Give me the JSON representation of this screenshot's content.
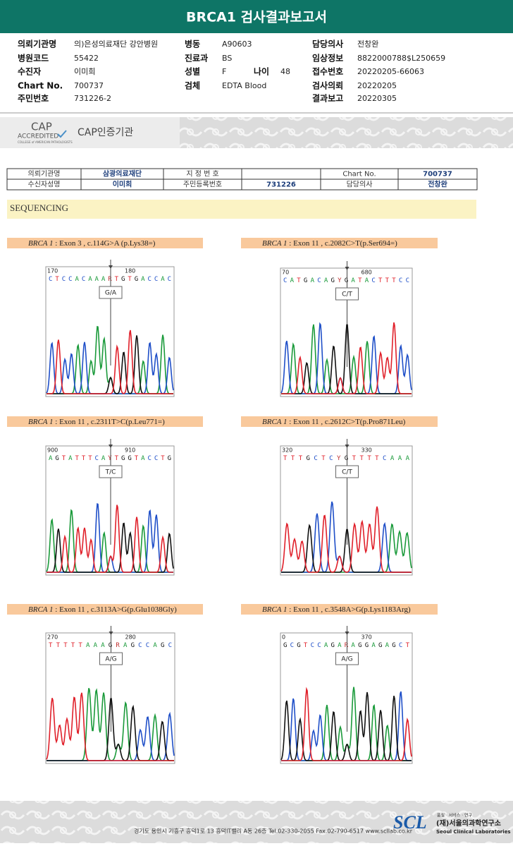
{
  "header": {
    "title": "BRCA1 검사결과보고서"
  },
  "info": {
    "cells": [
      {
        "label": "의뢰기관명",
        "value": "의)은성의료재단 강안병원"
      },
      {
        "label": "병동",
        "value": "A90603"
      },
      {
        "label": "담당의사",
        "value": "전창완"
      },
      {
        "label": "병원코드",
        "value": "55422"
      },
      {
        "label": "진료과",
        "value": "BS"
      },
      {
        "label": "임상정보",
        "value": "8822000788$L250659"
      },
      {
        "label": "수진자",
        "value": "이미희"
      },
      {
        "label": "성별",
        "value": "F"
      },
      {
        "label": "나이",
        "value": "48"
      },
      {
        "label": "접수번호",
        "value": "20220205-66063"
      },
      {
        "label": "Chart No.",
        "value": "700737"
      },
      {
        "label": "검체",
        "value": "EDTA Blood"
      },
      {
        "label": "검사의뢰",
        "value": "20220205"
      },
      {
        "label": "주민번호",
        "value": "731226-2"
      },
      {
        "label": "결과보고",
        "value": "20220305"
      }
    ]
  },
  "cap": {
    "logo": "CAP",
    "accredited": "ACCREDITED",
    "college": "COLLEGE of AMERICAN PATHOLOGISTS",
    "title": "CAP인증기관"
  },
  "table": {
    "rows": [
      [
        {
          "label": "의뢰기관명",
          "value": "삼광의료재단"
        },
        {
          "label": "지 정 번 호"
        },
        {
          "label": "Chart No.",
          "value": "700737"
        }
      ],
      [
        {
          "label": "수신자성명",
          "value": "이미희"
        },
        {
          "label": "주민등록번호",
          "value": "731226"
        },
        {
          "label": "담당의사",
          "value": "전창완"
        }
      ]
    ]
  },
  "section": {
    "title": "SEQUENCING"
  },
  "panels": [
    {
      "gene": "BRCA 1",
      "desc": " : Exon 3 , c.114G>A (p.Lys38=)",
      "positions": [
        "170",
        "180"
      ],
      "sequence": "CTCCACAAARTGTGACCAC",
      "call": "G/A"
    },
    {
      "gene": "BRCA 1",
      "desc": " : Exon 11 , c.2082C>T(p.Ser694=)",
      "positions": [
        "70",
        "680"
      ],
      "sequence": "CATGACAGYGATACTTTCC",
      "call": "C/T"
    },
    {
      "gene": "BRCA 1",
      "desc": " : Exon 11 , c.2311T>C(p.Leu771=)",
      "positions": [
        "900",
        "910"
      ],
      "sequence": "AGTATTTCAYTGGTACCTG",
      "call": "T/C"
    },
    {
      "gene": "BRCA 1",
      "desc": " : Exon 11 , c.2612C>T(p.Pro871Leu)",
      "positions": [
        "320",
        "330"
      ],
      "sequence": "TTTGCTCYGTTTTCAAA",
      "call": "C/T"
    },
    {
      "gene": "BRCA 1",
      "desc": " : Exon 11 , c.3113A>G(p.Glu1038Gly)",
      "positions": [
        "270",
        "280"
      ],
      "sequence": "TTTTTAAAGRAGCCAGC",
      "call": "A/G"
    },
    {
      "gene": "BRCA 1",
      "desc": " : Exon 11 , c.3548A>G(p.Lys1183Arg)",
      "positions": [
        "0",
        "370"
      ],
      "sequence": "GCGTCCAGARAGGAGAGCT",
      "call": "A/G"
    }
  ],
  "footer": {
    "address": "경기도 용인시 기흥구 흥덕1로 13 흥덕IT밸리 A동 26층  Tel.02-330-2055  Fax.02-790-6517  www.scllab.co.kr",
    "motto": "품질 · 서비스 · 연구",
    "logo": "SCL",
    "org": "(재)서울의과학연구소",
    "org_en": "Seoul Clinical Laboratories"
  }
}
